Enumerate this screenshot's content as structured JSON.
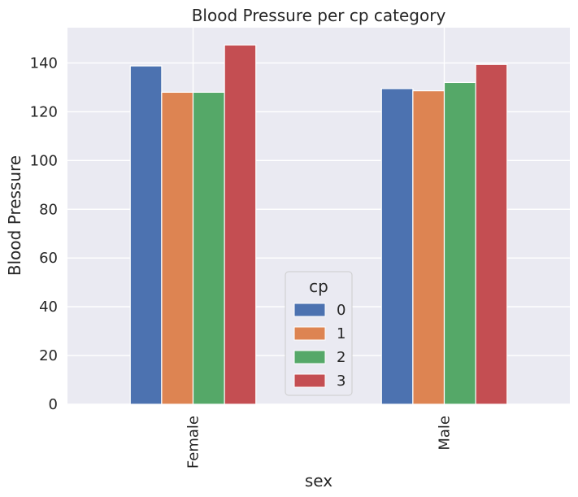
{
  "chart_data": {
    "type": "bar",
    "title": "Blood Pressure per cp category",
    "xlabel": "sex",
    "ylabel": "Blood Pressure",
    "categories": [
      "Female",
      "Male"
    ],
    "ylim": [
      0,
      154.5
    ],
    "yticks": [
      0,
      20,
      40,
      60,
      80,
      100,
      120,
      140
    ],
    "grid": true,
    "legend": {
      "title": "cp",
      "placement": "lower-center"
    },
    "series": [
      {
        "name": "0",
        "color": "#4c72b0",
        "values": [
          138.8,
          129.5
        ]
      },
      {
        "name": "1",
        "color": "#dd8452",
        "values": [
          128.0,
          128.6
        ]
      },
      {
        "name": "2",
        "color": "#55a868",
        "values": [
          128.0,
          132.0
        ]
      },
      {
        "name": "3",
        "color": "#c44e52",
        "values": [
          147.4,
          139.4
        ]
      }
    ]
  }
}
